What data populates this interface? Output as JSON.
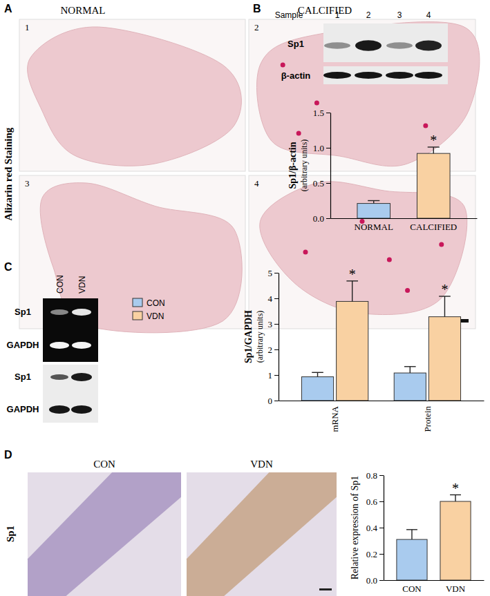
{
  "chart_data": [
    {
      "type": "bar",
      "categories": [
        "NORMAL",
        "CALCIFIED"
      ],
      "values": [
        0.21,
        0.92
      ],
      "errors": [
        0.04,
        0.09
      ],
      "colors": [
        "#a9cbee",
        "#f9d1a2"
      ],
      "ylim": [
        0,
        1.5
      ],
      "yticks": [
        {
          "value": 0,
          "label": "0.0"
        },
        {
          "value": 0.5,
          "label": "0.5"
        },
        {
          "value": 1,
          "label": "1.0"
        },
        {
          "value": 1.5,
          "label": "1.5"
        }
      ],
      "y_label": [
        "Sp1/β-actin",
        "(arbitrary units)"
      ],
      "annotations": [
        {
          "text": "*",
          "category": "CALCIFIED"
        }
      ]
    },
    {
      "type": "bar",
      "categories": [
        "mRNA",
        "Protein"
      ],
      "series": [
        {
          "name": "CON",
          "color": "#a9cbee",
          "values": [
            0.93,
            1.08
          ],
          "errors": [
            0.17,
            0.25
          ]
        },
        {
          "name": "VDN",
          "color": "#f9d1a2",
          "values": [
            3.88,
            3.28
          ],
          "errors": [
            0.8,
            0.8
          ]
        }
      ],
      "ylim": [
        0,
        5
      ],
      "yticks": [
        0,
        1,
        2,
        3,
        4,
        5
      ],
      "y_label": [
        "Sp1/GAPDH",
        "(arbitrary units)"
      ],
      "legend": "upper left",
      "annotations": [
        {
          "text": "*",
          "category": "mRNA",
          "series": "VDN"
        },
        {
          "text": "*",
          "category": "Protein",
          "series": "VDN"
        }
      ]
    },
    {
      "type": "bar",
      "categories": [
        "CON",
        "VDN"
      ],
      "values": [
        0.31,
        0.6
      ],
      "errors": [
        0.075,
        0.05
      ],
      "colors": [
        "#a9cbee",
        "#f9d1a2"
      ],
      "ylim": [
        0,
        0.8
      ],
      "yticks": [
        {
          "value": 0,
          "label": "0.0"
        },
        {
          "value": 0.2,
          "label": "0.2"
        },
        {
          "value": 0.4,
          "label": "0.4"
        },
        {
          "value": 0.6,
          "label": "0.6"
        },
        {
          "value": 0.8,
          "label": "0.8"
        }
      ],
      "y_label": [
        "Relative expression of Sp1"
      ],
      "annotations": [
        {
          "text": "*",
          "category": "VDN"
        }
      ]
    }
  ],
  "figure": {
    "panel_labels": [
      "A",
      "B",
      "C",
      "D"
    ],
    "a": {
      "columns": [
        "NORMAL",
        "CALCIFIED"
      ],
      "row_label": "Alizarin red Staining",
      "image_numbers": [
        "1",
        "2",
        "3",
        "4"
      ]
    },
    "b": {
      "sample_label": "Sample",
      "samples": [
        "1",
        "2",
        "3",
        "4"
      ],
      "bands": [
        "Sp1",
        "β-actin"
      ]
    },
    "c": {
      "lanes": [
        "CON",
        "VDN"
      ],
      "bands": [
        "Sp1",
        "GAPDH",
        "Sp1",
        "GAPDH"
      ]
    },
    "d": {
      "columns": [
        "CON",
        "VDN"
      ],
      "row_label": "Sp1"
    }
  }
}
